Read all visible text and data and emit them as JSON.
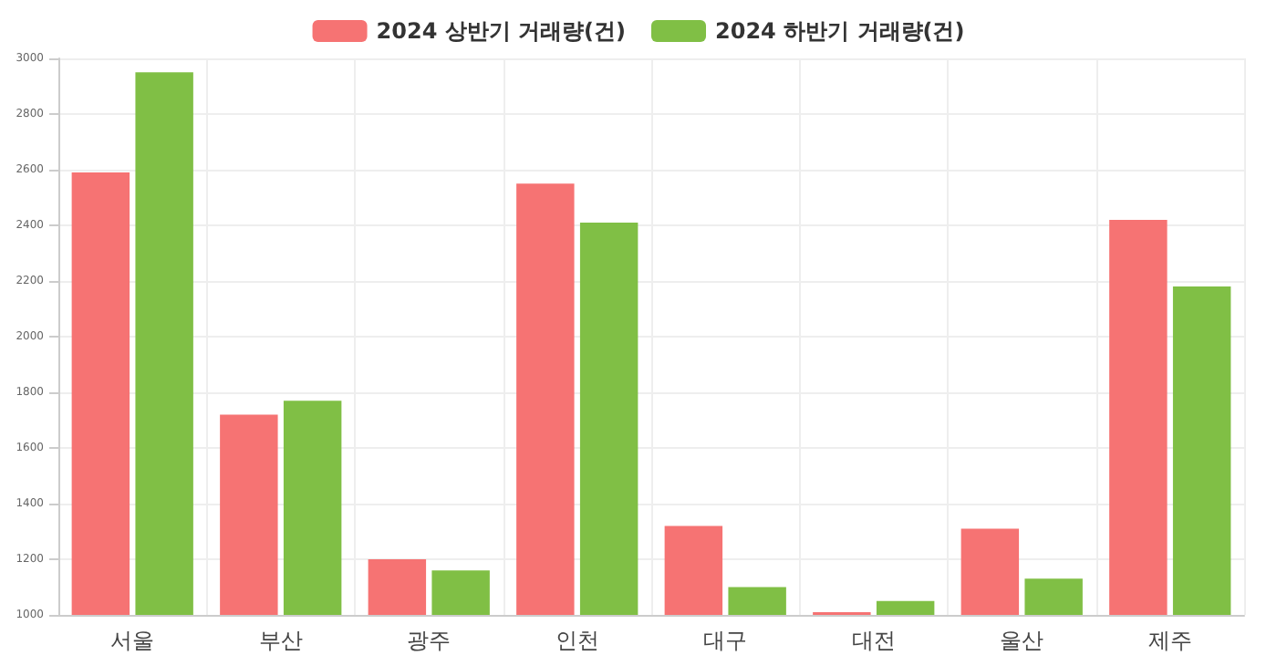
{
  "chart_data": {
    "type": "bar",
    "categories": [
      "서울",
      "부산",
      "광주",
      "인천",
      "대구",
      "대전",
      "울산",
      "제주"
    ],
    "series": [
      {
        "name": "2024 상반기 거래량(건)",
        "color": "#f67373",
        "values": [
          2590,
          1720,
          1200,
          2550,
          1320,
          1010,
          1310,
          2420
        ]
      },
      {
        "name": "2024 하반기 거래량(건)",
        "color": "#80bf45",
        "values": [
          2950,
          1770,
          1160,
          2410,
          1100,
          1050,
          1130,
          2180
        ]
      }
    ],
    "ylim": [
      1000,
      3000
    ],
    "yticks": [
      1000,
      1200,
      1400,
      1600,
      1800,
      2000,
      2200,
      2400,
      2600,
      2800,
      3000
    ],
    "grid": true,
    "legend": "top"
  }
}
